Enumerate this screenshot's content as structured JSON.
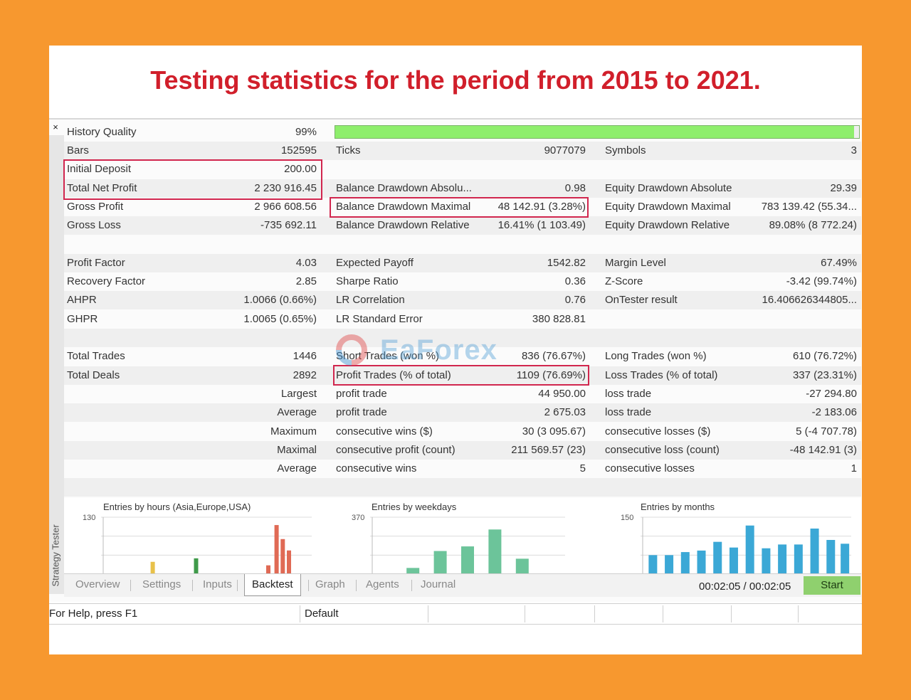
{
  "headline": "Testing statistics for the period from 2015 to 2021.",
  "window": {
    "vertical_tab": "Strategy Tester",
    "close_glyph": "×"
  },
  "history_quality": {
    "label": "History Quality",
    "value": "99%",
    "progress": 0.99,
    "bar_color": "#8eee6c"
  },
  "rows": [
    {
      "c1": [
        "Bars",
        "152595"
      ],
      "c2": [
        "Ticks",
        "9077079"
      ],
      "c3": [
        "Symbols",
        "3"
      ]
    },
    {
      "c1": [
        "Initial Deposit",
        "200.00"
      ],
      "c2": [
        "",
        ""
      ],
      "c3": [
        "",
        ""
      ]
    },
    {
      "c1": [
        "Total Net Profit",
        "2 230 916.45"
      ],
      "c2": [
        "Balance Drawdown Absolu...",
        "0.98"
      ],
      "c3": [
        "Equity Drawdown Absolute",
        "29.39"
      ]
    },
    {
      "c1": [
        "Gross Profit",
        "2 966 608.56"
      ],
      "c2": [
        "Balance Drawdown Maximal",
        "48 142.91 (3.28%)"
      ],
      "c3": [
        "Equity Drawdown Maximal",
        "783 139.42 (55.34..."
      ]
    },
    {
      "c1": [
        "Gross Loss",
        "-735 692.11"
      ],
      "c2": [
        "Balance Drawdown Relative",
        "16.41% (1 103.49)"
      ],
      "c3": [
        "Equity Drawdown Relative",
        "89.08% (8 772.24)"
      ]
    },
    {
      "c1": [
        "",
        ""
      ],
      "c2": [
        "",
        ""
      ],
      "c3": [
        "",
        ""
      ]
    },
    {
      "c1": [
        "Profit Factor",
        "4.03"
      ],
      "c2": [
        "Expected Payoff",
        "1542.82"
      ],
      "c3": [
        "Margin Level",
        "67.49%"
      ]
    },
    {
      "c1": [
        "Recovery Factor",
        "2.85"
      ],
      "c2": [
        "Sharpe Ratio",
        "0.36"
      ],
      "c3": [
        "Z-Score",
        "-3.42 (99.74%)"
      ]
    },
    {
      "c1": [
        "AHPR",
        "1.0066 (0.66%)"
      ],
      "c2": [
        "LR Correlation",
        "0.76"
      ],
      "c3": [
        "OnTester result",
        "16.406626344805..."
      ]
    },
    {
      "c1": [
        "GHPR",
        "1.0065 (0.65%)"
      ],
      "c2": [
        "LR Standard Error",
        "380 828.81"
      ],
      "c3": [
        "",
        ""
      ]
    },
    {
      "c1": [
        "",
        ""
      ],
      "c2": [
        "",
        ""
      ],
      "c3": [
        "",
        ""
      ]
    },
    {
      "c1": [
        "Total Trades",
        "1446"
      ],
      "c2": [
        "Short Trades (won %)",
        "836 (76.67%)"
      ],
      "c3": [
        "Long Trades (won %)",
        "610 (76.72%)"
      ]
    },
    {
      "c1": [
        "Total Deals",
        "2892"
      ],
      "c2": [
        "Profit Trades (% of total)",
        "1109 (76.69%)"
      ],
      "c3": [
        "Loss Trades (% of total)",
        "337 (23.31%)"
      ]
    },
    {
      "c1": [
        "",
        "Largest"
      ],
      "c2": [
        "profit trade",
        "44 950.00"
      ],
      "c3": [
        "loss trade",
        "-27 294.80"
      ]
    },
    {
      "c1": [
        "",
        "Average"
      ],
      "c2": [
        "profit trade",
        "2 675.03"
      ],
      "c3": [
        "loss trade",
        "-2 183.06"
      ]
    },
    {
      "c1": [
        "",
        "Maximum"
      ],
      "c2": [
        "consecutive wins ($)",
        "30 (3 095.67)"
      ],
      "c3": [
        "consecutive losses ($)",
        "5 (-4 707.78)"
      ]
    },
    {
      "c1": [
        "",
        "Maximal"
      ],
      "c2": [
        "consecutive profit (count)",
        "211 569.57 (23)"
      ],
      "c3": [
        "consecutive loss (count)",
        "-48 142.91 (3)"
      ]
    },
    {
      "c1": [
        "",
        "Average"
      ],
      "c2": [
        "consecutive wins",
        "5"
      ],
      "c3": [
        "consecutive losses",
        "1"
      ]
    },
    {
      "c1": [
        "",
        ""
      ],
      "c2": [
        "",
        ""
      ],
      "c3": [
        "",
        ""
      ]
    }
  ],
  "watermark": "EaForex",
  "chart_data": [
    {
      "type": "bar",
      "title": "Entries by hours (Asia,Europe,USA)",
      "ymax_label": "130",
      "ylim": [
        0,
        130
      ],
      "bars": [
        {
          "x": 0.24,
          "value": 28,
          "color": "#e8c14a"
        },
        {
          "x": 0.45,
          "value": 36,
          "color": "#3f9a4a"
        },
        {
          "x": 0.8,
          "value": 20,
          "color": "#e06a55"
        },
        {
          "x": 0.84,
          "value": 112,
          "color": "#e06a55"
        },
        {
          "x": 0.87,
          "value": 80,
          "color": "#e06a55"
        },
        {
          "x": 0.9,
          "value": 54,
          "color": "#e06a55"
        }
      ]
    },
    {
      "type": "bar",
      "title": "Entries by weekdays",
      "ymax_label": "370",
      "ylim": [
        0,
        370
      ],
      "bars": [
        {
          "x": 0.2,
          "value": 40,
          "color": "#6cc49a"
        },
        {
          "x": 0.35,
          "value": 150,
          "color": "#6cc49a"
        },
        {
          "x": 0.5,
          "value": 180,
          "color": "#6cc49a"
        },
        {
          "x": 0.65,
          "value": 290,
          "color": "#6cc49a"
        },
        {
          "x": 0.8,
          "value": 100,
          "color": "#6cc49a"
        }
      ]
    },
    {
      "type": "bar",
      "title": "Entries by months",
      "ymax_label": "150",
      "ylim": [
        0,
        150
      ],
      "bars": [
        {
          "x": 0.04,
          "value": 50,
          "color": "#3ba8d6"
        },
        {
          "x": 0.12,
          "value": 50,
          "color": "#3ba8d6"
        },
        {
          "x": 0.2,
          "value": 58,
          "color": "#3ba8d6"
        },
        {
          "x": 0.28,
          "value": 62,
          "color": "#3ba8d6"
        },
        {
          "x": 0.36,
          "value": 85,
          "color": "#3ba8d6"
        },
        {
          "x": 0.44,
          "value": 70,
          "color": "#3ba8d6"
        },
        {
          "x": 0.52,
          "value": 128,
          "color": "#3ba8d6"
        },
        {
          "x": 0.6,
          "value": 68,
          "color": "#3ba8d6"
        },
        {
          "x": 0.68,
          "value": 78,
          "color": "#3ba8d6"
        },
        {
          "x": 0.76,
          "value": 78,
          "color": "#3ba8d6"
        },
        {
          "x": 0.84,
          "value": 120,
          "color": "#3ba8d6"
        },
        {
          "x": 0.92,
          "value": 90,
          "color": "#3ba8d6"
        },
        {
          "x": 0.99,
          "value": 80,
          "color": "#3ba8d6"
        }
      ]
    }
  ],
  "tabs": [
    "Overview",
    "Settings",
    "Inputs",
    "Backtest",
    "Graph",
    "Agents",
    "Journal"
  ],
  "active_tab": "Backtest",
  "timer": "00:02:05 / 00:02:05",
  "start_button": "Start",
  "status_bar": {
    "help": "For Help, press F1",
    "profile": "Default"
  }
}
